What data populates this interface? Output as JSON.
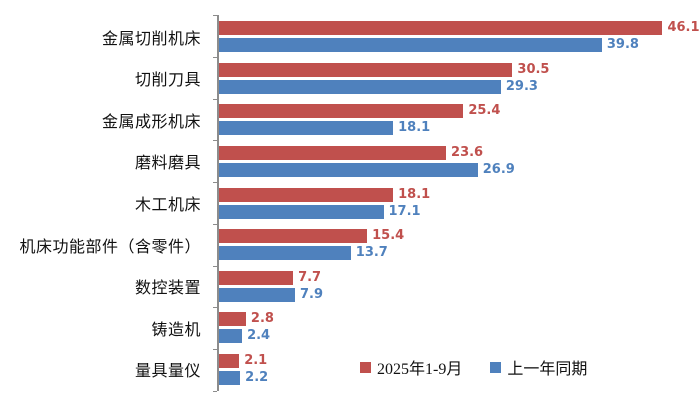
{
  "chart_data": {
    "type": "bar",
    "orientation": "horizontal",
    "title": "",
    "xlabel": "",
    "ylabel": "",
    "xlim": [
      0,
      50
    ],
    "grid": false,
    "value_labels": true,
    "legend_position": "bottom",
    "axis_color": "#8c8c8c",
    "categories": [
      "金属切削机床",
      "切削刀具",
      "金属成形机床",
      "磨料磨具",
      "木工机床",
      "机床功能部件（含零件）",
      "数控装置",
      "铸造机",
      "量具量仪"
    ],
    "series": [
      {
        "name": "2025年1-9月",
        "color": "#c0504d",
        "values": [
          46.1,
          30.5,
          25.4,
          23.6,
          18.1,
          15.4,
          7.7,
          2.8,
          2.1
        ]
      },
      {
        "name": "上一年同期",
        "color": "#4f81bd",
        "values": [
          39.8,
          29.3,
          18.1,
          26.9,
          17.1,
          13.7,
          7.9,
          2.4,
          2.2
        ]
      }
    ]
  }
}
